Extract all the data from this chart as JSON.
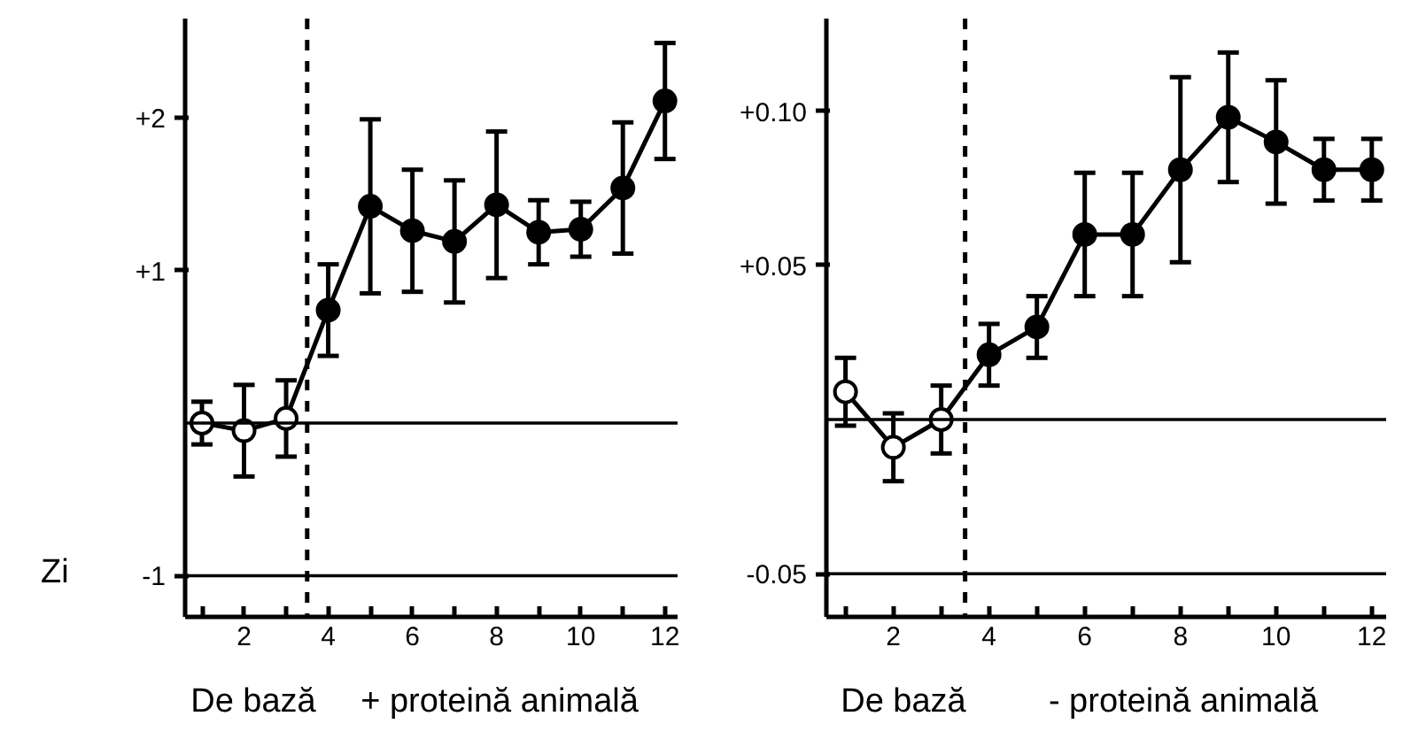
{
  "chart_data": [
    {
      "type": "line",
      "ylabel": "Zi",
      "annotations": [
        "De bază",
        "+ proteină animală"
      ],
      "x": [
        1,
        2,
        3,
        4,
        5,
        6,
        7,
        8,
        9,
        10,
        11,
        12
      ],
      "series": [
        {
          "color": "#000000",
          "colors": [
            "#ffffff",
            "#ffffff",
            "#ffffff",
            "#000000",
            "#000000",
            "#000000",
            "#000000",
            "#000000",
            "#000000",
            "#000000",
            "#000000",
            "#000000"
          ],
          "values": [
            0,
            -0.05,
            0.03,
            0.74,
            1.42,
            1.26,
            1.19,
            1.43,
            1.25,
            1.27,
            1.54,
            2.11
          ],
          "errors": [
            0.14,
            0.3,
            0.25,
            0.3,
            0.57,
            0.4,
            0.4,
            0.48,
            0.21,
            0.18,
            0.43,
            0.38
          ]
        }
      ],
      "xlim": [
        0.6,
        12.3
      ],
      "ylim": [
        -1.27,
        2.65
      ],
      "xticks": [
        {
          "value": 1,
          "label": null
        },
        2,
        {
          "value": 3,
          "label": null
        },
        4,
        {
          "value": 5,
          "label": null
        },
        6,
        {
          "value": 7,
          "label": null
        },
        8,
        {
          "value": 9,
          "label": null
        },
        10,
        {
          "value": 11,
          "label": null
        },
        12
      ],
      "yticks": [
        {
          "value": -1,
          "label": "-1"
        },
        {
          "value": 1,
          "label": "+1"
        },
        {
          "value": 2,
          "label": "+2"
        }
      ],
      "ref_lines": [
        {
          "axis": "x",
          "value": 3.5,
          "line_style": "dashed"
        },
        {
          "axis": "y",
          "value": 0
        },
        {
          "axis": "y",
          "value": -1
        }
      ],
      "marker": "circle",
      "line_style": "solid",
      "grid": false
    },
    {
      "type": "line",
      "annotations": [
        "De bază",
        "- proteină animală"
      ],
      "x": [
        1,
        2,
        3,
        4,
        5,
        6,
        7,
        8,
        9,
        10,
        11,
        12
      ],
      "series": [
        {
          "color": "#000000",
          "colors": [
            "#ffffff",
            "#ffffff",
            "#ffffff",
            "#000000",
            "#000000",
            "#000000",
            "#000000",
            "#000000",
            "#000000",
            "#000000",
            "#000000",
            "#000000"
          ],
          "values": [
            0.009,
            -0.009,
            0,
            0.021,
            0.03,
            0.06,
            0.06,
            0.081,
            0.098,
            0.09,
            0.081,
            0.081
          ],
          "errors": [
            0.011,
            0.011,
            0.011,
            0.01,
            0.01,
            0.02,
            0.02,
            0.03,
            0.021,
            0.02,
            0.01,
            0.01
          ]
        }
      ],
      "xlim": [
        0.6,
        12.3
      ],
      "ylim": [
        -0.064,
        0.13
      ],
      "xticks": [
        {
          "value": 1,
          "label": null
        },
        2,
        {
          "value": 3,
          "label": null
        },
        4,
        {
          "value": 5,
          "label": null
        },
        6,
        {
          "value": 7,
          "label": null
        },
        8,
        {
          "value": 9,
          "label": null
        },
        10,
        {
          "value": 11,
          "label": null
        },
        12
      ],
      "yticks": [
        {
          "value": -0.05,
          "label": "-0.05"
        },
        {
          "value": 0.05,
          "label": "+0.05"
        },
        {
          "value": 0.1,
          "label": "+0.10"
        }
      ],
      "ref_lines": [
        {
          "axis": "x",
          "value": 3.5,
          "line_style": "dashed"
        },
        {
          "axis": "y",
          "value": 0
        },
        {
          "axis": "y",
          "value": -0.05
        }
      ],
      "marker": "circle",
      "line_style": "solid",
      "grid": false
    }
  ]
}
